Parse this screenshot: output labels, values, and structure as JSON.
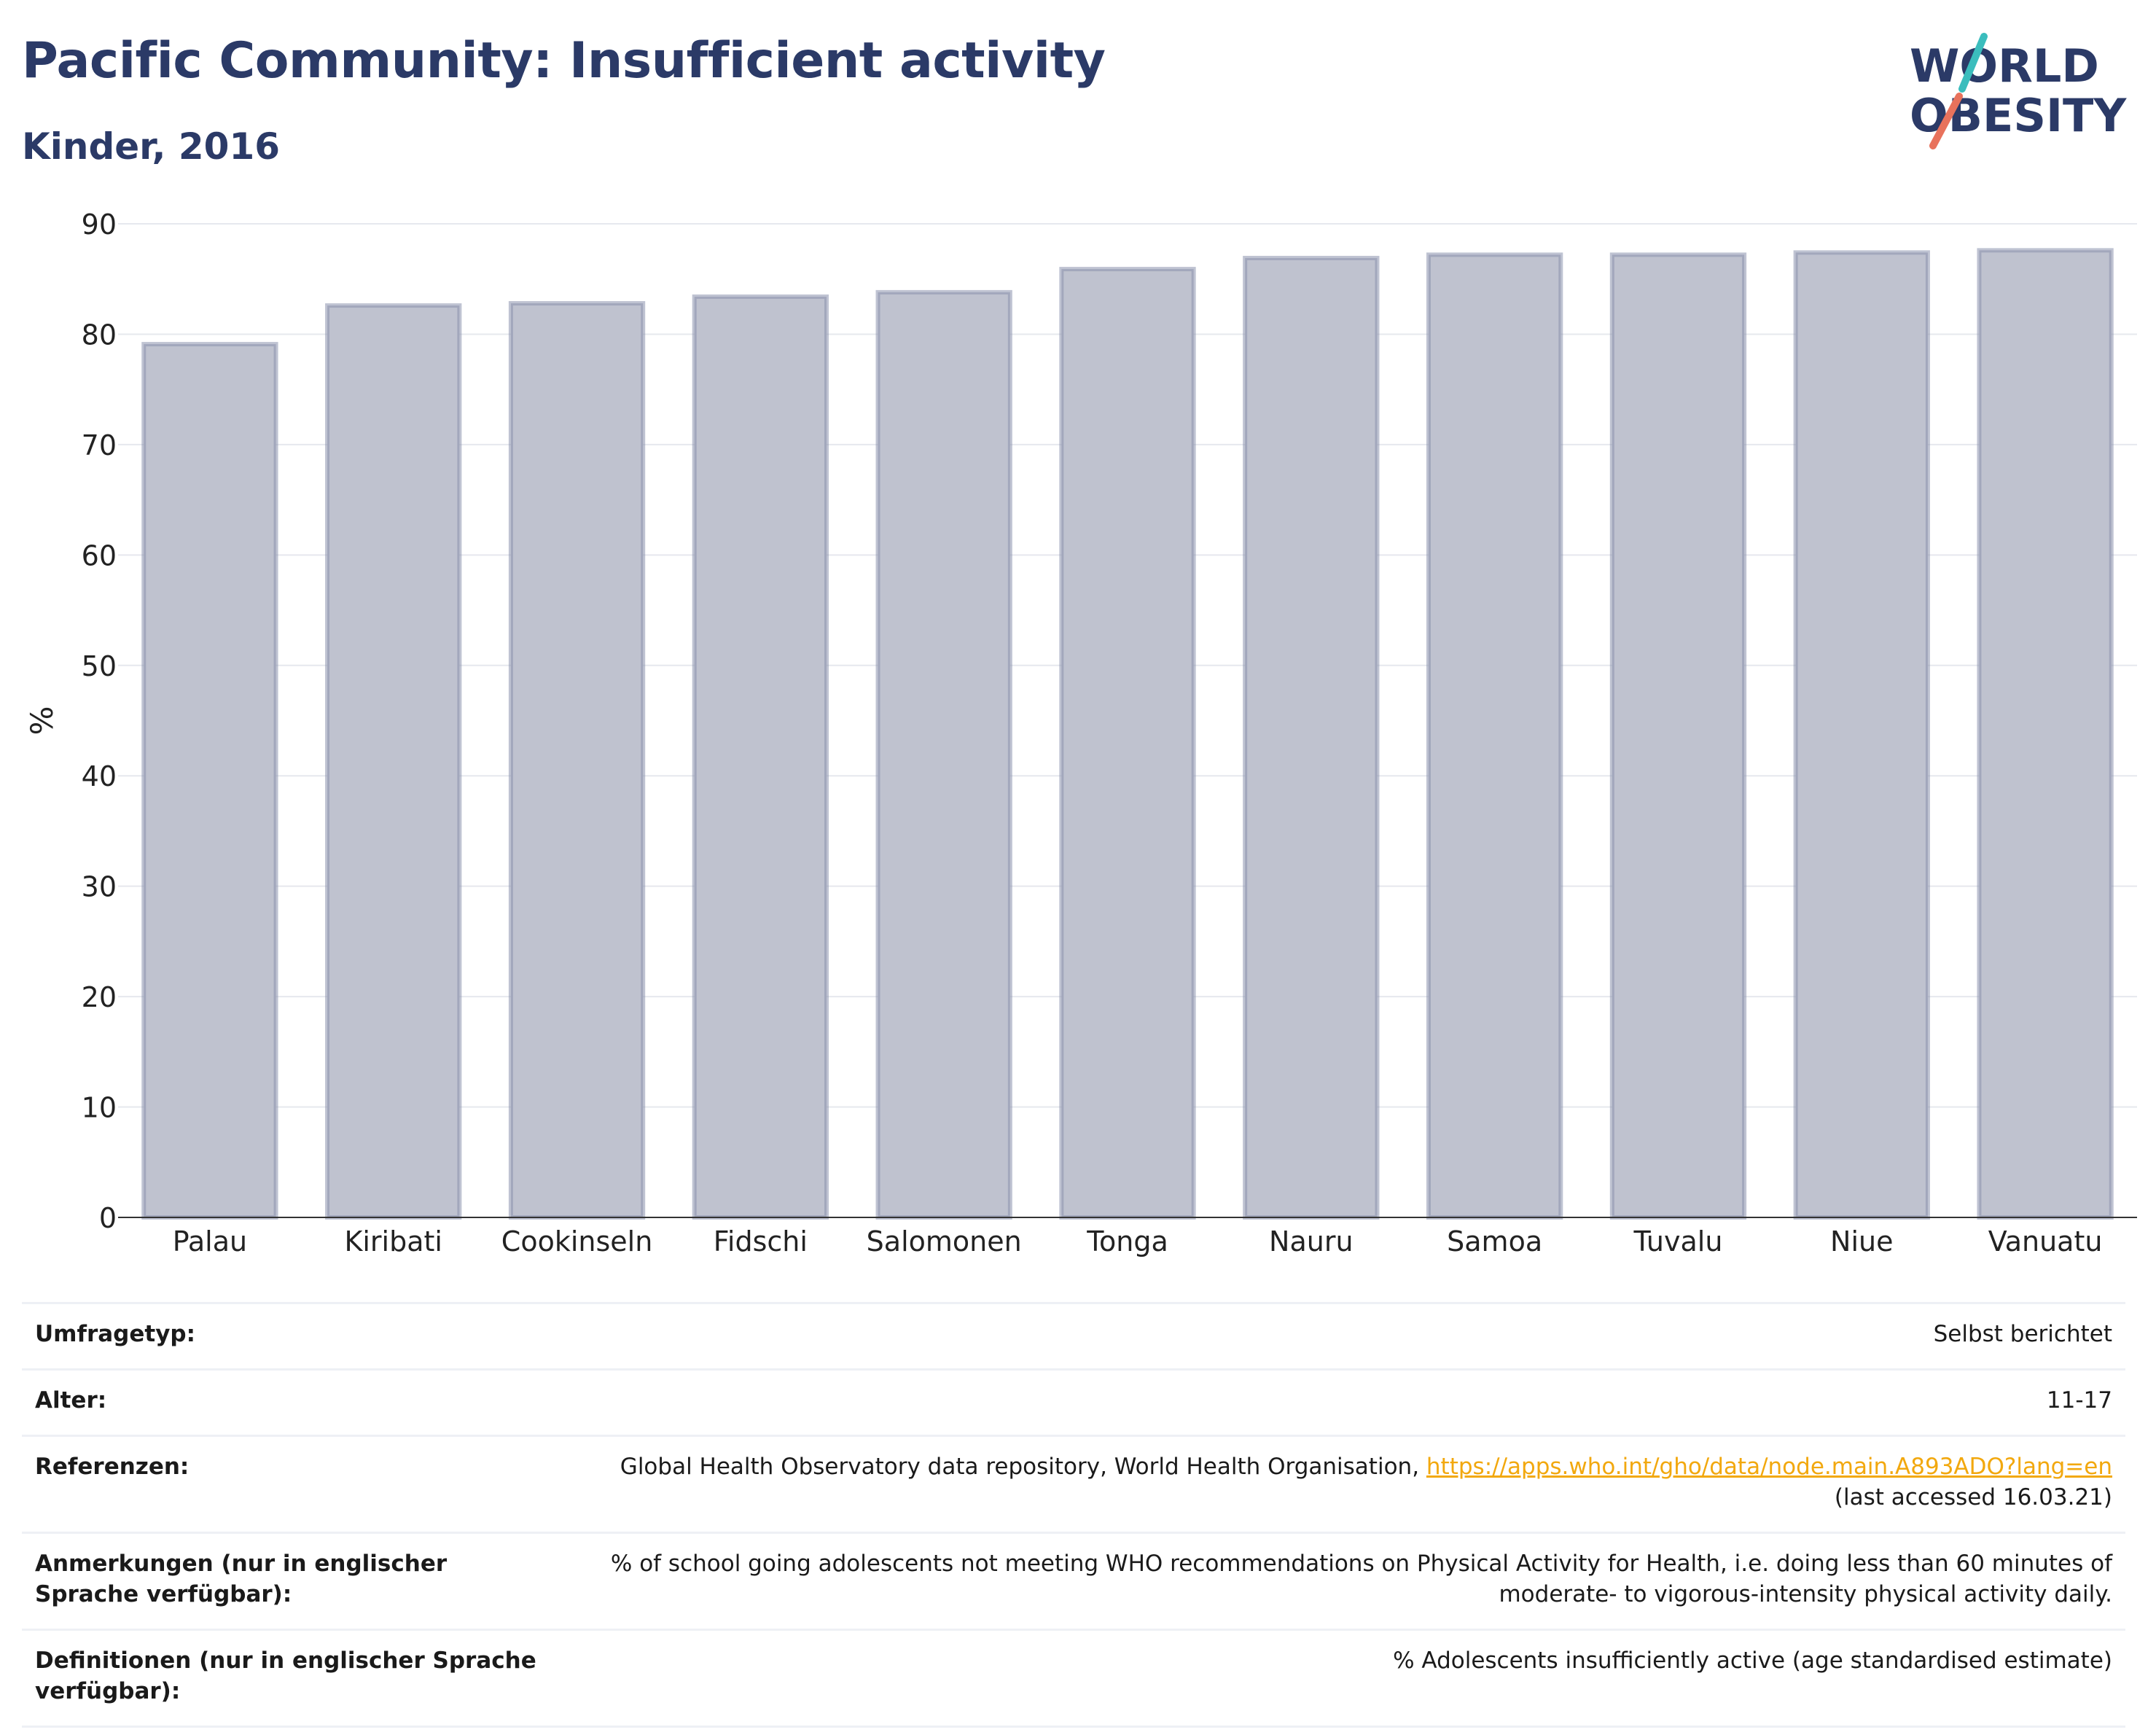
{
  "header": {
    "title": "Pacific Community: Insufficient activity",
    "subtitle": "Kinder, 2016"
  },
  "logo": {
    "line1": "WORLD",
    "line2": "OBESITY",
    "accent_teal": "#3bbdbd",
    "accent_coral": "#e8725c"
  },
  "chart_data": {
    "type": "bar",
    "categories": [
      "Palau",
      "Kiribati",
      "Cookinseln",
      "Fidschi",
      "Salomonen",
      "Tonga",
      "Nauru",
      "Samoa",
      "Tuvalu",
      "Niue",
      "Vanuatu"
    ],
    "values": [
      79.1,
      82.6,
      82.8,
      83.4,
      83.8,
      85.9,
      86.9,
      87.2,
      87.2,
      87.4,
      87.6
    ],
    "ylabel": "%",
    "ylim": [
      0,
      90
    ],
    "yticks": [
      0,
      10,
      20,
      30,
      40,
      50,
      60,
      70,
      80,
      90
    ],
    "grid": true,
    "bar_fill": "#bfc2cf",
    "bar_stroke": "#8a92ad"
  },
  "meta": [
    {
      "label": "Umfragetyp:",
      "value": "Selbst berichtet"
    },
    {
      "label": "Alter:",
      "value": "11-17"
    },
    {
      "label": "Referenzen:",
      "value": "Global Health Observatory data repository, World Health Organisation, ",
      "link": "https://apps.who.int/gho/data/node.main.A893ADO?lang=en",
      "value2": "(last accessed 16.03.21)"
    },
    {
      "label": "Anmerkungen (nur in englischer Sprache verfügbar):",
      "value": "% of school going adolescents not meeting WHO recommendations on Physical Activity for Health, i.e. doing less than 60 minutes of moderate- to vigorous-intensity physical activity daily."
    },
    {
      "label": "Definitionen (nur in englischer Sprache verfügbar):",
      "value": "% Adolescents insufficiently active (age standardised estimate)"
    }
  ]
}
